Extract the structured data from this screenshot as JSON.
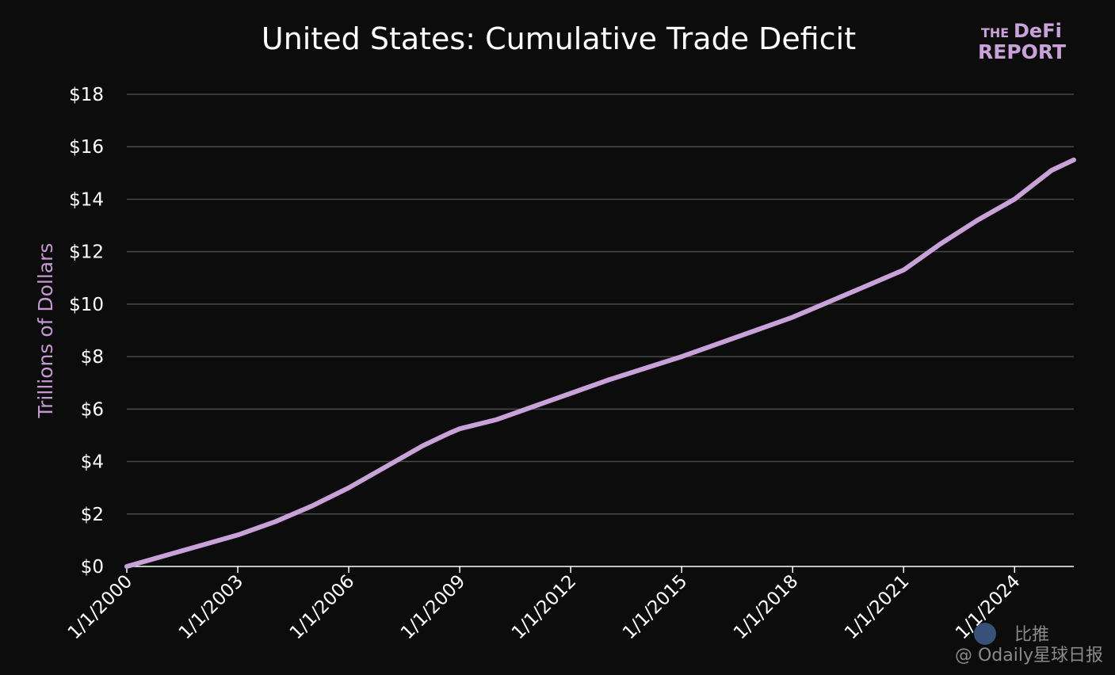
{
  "chart_data": {
    "type": "line",
    "title": "United States: Cumulative Trade Deficit",
    "ylabel": "Trillions of Dollars",
    "xlabel": "",
    "ylim": [
      0,
      18
    ],
    "xlim": [
      2000,
      2025.6
    ],
    "grid": true,
    "line_color": "#c9a2d9",
    "y_ticks": [
      {
        "value": 0,
        "label": "$0"
      },
      {
        "value": 2,
        "label": "$2"
      },
      {
        "value": 4,
        "label": "$4"
      },
      {
        "value": 6,
        "label": "$6"
      },
      {
        "value": 8,
        "label": "$8"
      },
      {
        "value": 10,
        "label": "$10"
      },
      {
        "value": 12,
        "label": "$12"
      },
      {
        "value": 14,
        "label": "$14"
      },
      {
        "value": 16,
        "label": "$16"
      },
      {
        "value": 18,
        "label": "$18"
      }
    ],
    "x_ticks": [
      {
        "value": 2000,
        "label": "1/1/2000"
      },
      {
        "value": 2003,
        "label": "1/1/2003"
      },
      {
        "value": 2006,
        "label": "1/1/2006"
      },
      {
        "value": 2009,
        "label": "1/1/2009"
      },
      {
        "value": 2012,
        "label": "1/1/2012"
      },
      {
        "value": 2015,
        "label": "1/1/2015"
      },
      {
        "value": 2018,
        "label": "1/1/2018"
      },
      {
        "value": 2021,
        "label": "1/1/2021"
      },
      {
        "value": 2024,
        "label": "1/1/2024"
      }
    ],
    "series": [
      {
        "x": [
          2000,
          2001,
          2002,
          2003,
          2004,
          2005,
          2006,
          2007,
          2008,
          2008.75,
          2009,
          2010,
          2011,
          2012,
          2013,
          2014,
          2015,
          2016,
          2017,
          2018,
          2019,
          2020,
          2021,
          2022,
          2023,
          2024,
          2025,
          2025.6
        ],
        "values": [
          0,
          0.4,
          0.8,
          1.2,
          1.7,
          2.3,
          3.0,
          3.8,
          4.6,
          5.1,
          5.25,
          5.6,
          6.1,
          6.6,
          7.1,
          7.55,
          8.0,
          8.5,
          9.0,
          9.5,
          10.1,
          10.7,
          11.3,
          12.3,
          13.2,
          14.0,
          15.1,
          15.5
        ]
      }
    ]
  },
  "logo": {
    "line1": "THE",
    "line2": "DeFi",
    "line3": "REPORT"
  },
  "watermark": {
    "text": "比推",
    "text2": "@ Odaily星球日报"
  }
}
